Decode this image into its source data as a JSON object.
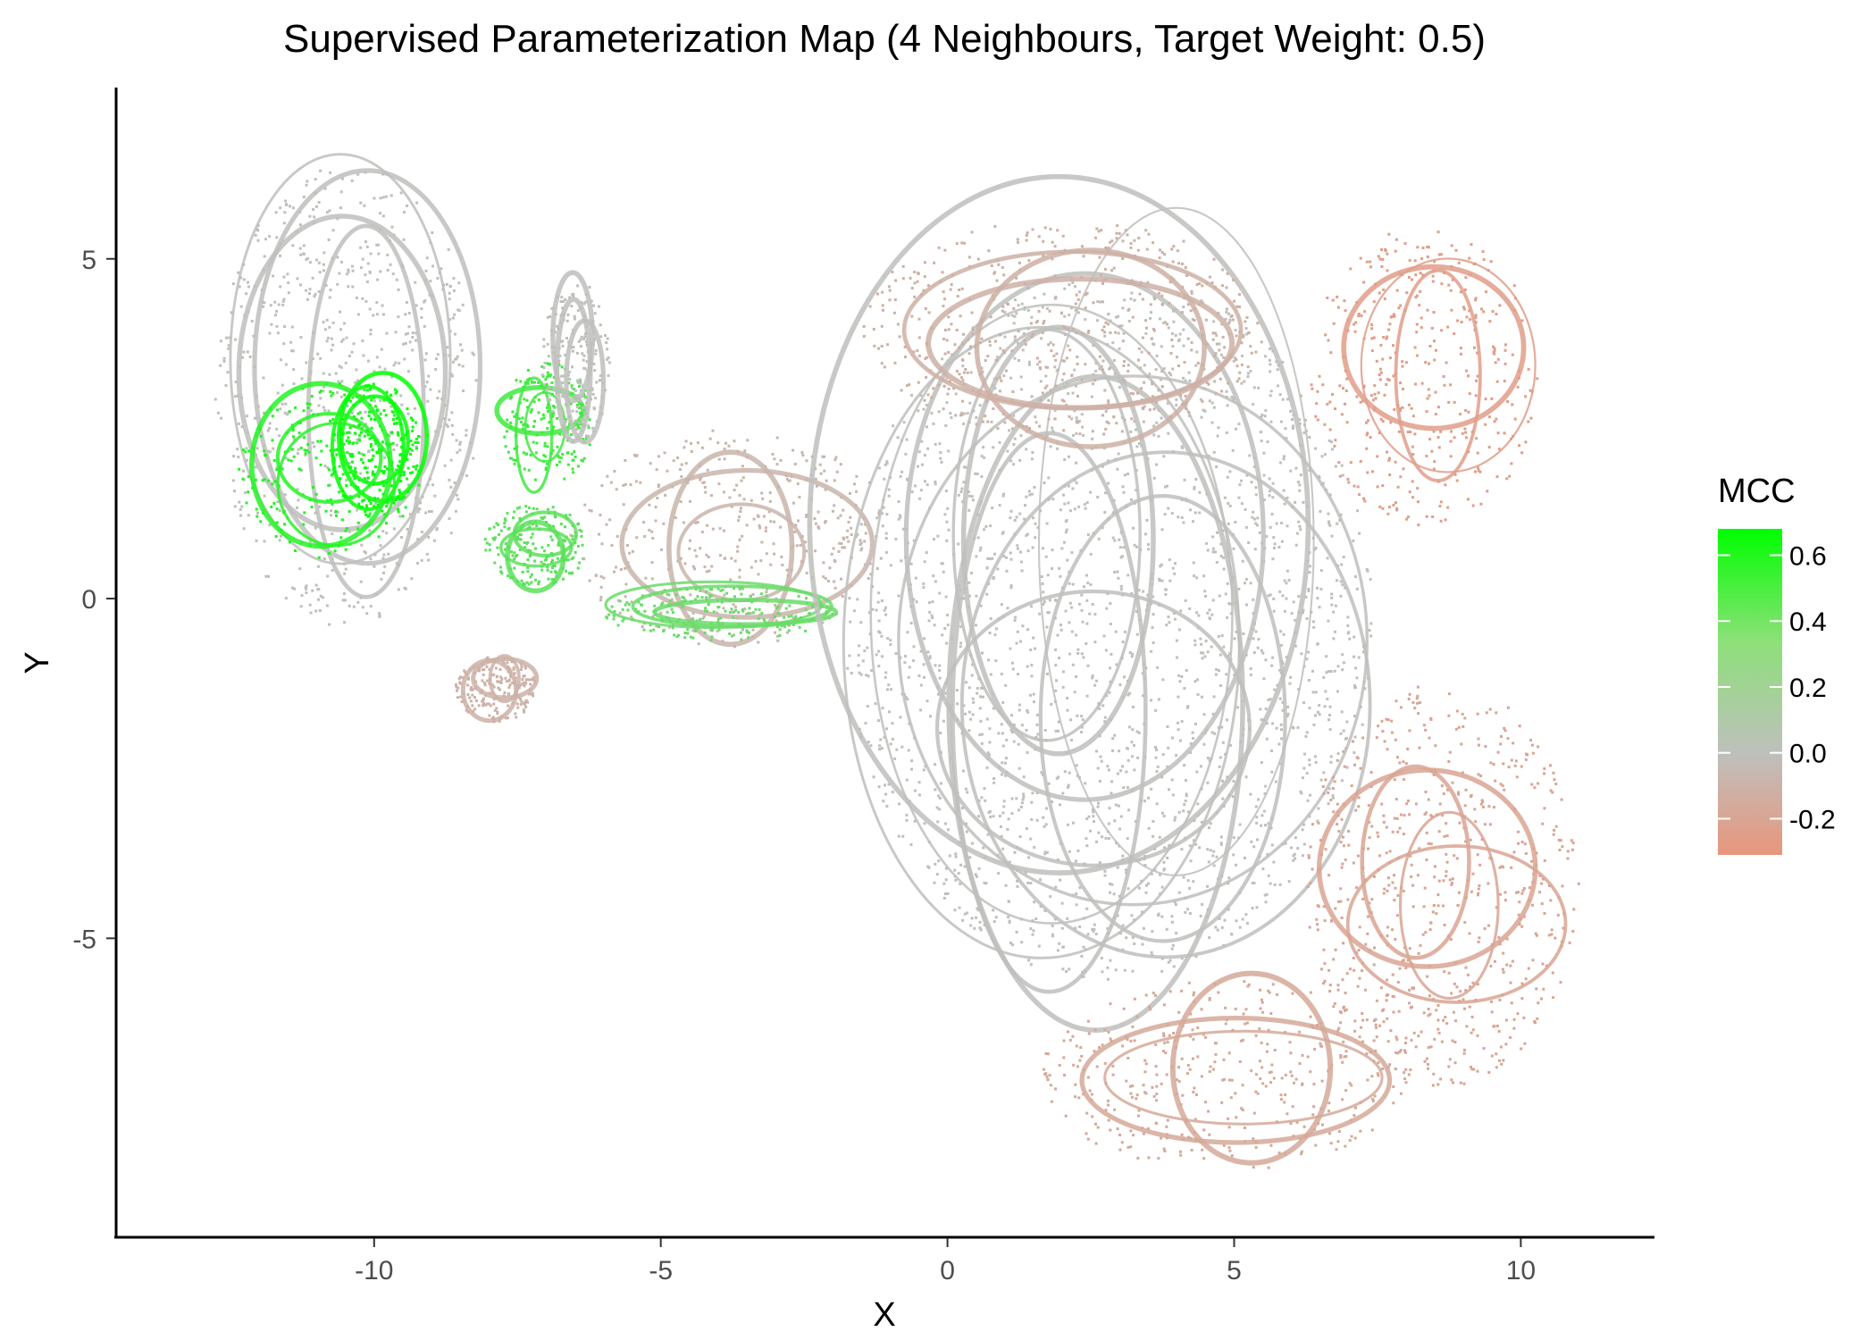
{
  "chart_data": {
    "type": "scatter",
    "title": "Supervised Parameterization Map (4 Neighbours, Target Weight: 0.5)",
    "xlabel": "X",
    "ylabel": "Y",
    "xlim": [
      -14.5,
      12.3
    ],
    "ylim": [
      -9.4,
      7.6
    ],
    "x_ticks": [
      {
        "value": -10,
        "label": "-10"
      },
      {
        "value": -5,
        "label": "-5"
      },
      {
        "value": 0,
        "label": "0"
      },
      {
        "value": 5,
        "label": "5"
      },
      {
        "value": 10,
        "label": "10"
      }
    ],
    "y_ticks": [
      {
        "value": 5,
        "label": "5"
      },
      {
        "value": 0,
        "label": "0"
      },
      {
        "value": -5,
        "label": "-5"
      }
    ],
    "grid": false,
    "legend": {
      "title": "MCC",
      "position": "right",
      "range": [
        -0.31,
        0.68
      ],
      "ticks": [
        {
          "value": 0.6,
          "label": "0.6"
        },
        {
          "value": 0.4,
          "label": "0.4"
        },
        {
          "value": 0.2,
          "label": "0.2"
        },
        {
          "value": 0.0,
          "label": "0.0"
        },
        {
          "value": -0.2,
          "label": "-0.2"
        }
      ],
      "color_stops": [
        {
          "value": -0.31,
          "color": "#e8967d"
        },
        {
          "value": 0.0,
          "color": "#bec0bc"
        },
        {
          "value": 0.68,
          "color": "#00ff00"
        }
      ]
    },
    "regions": [
      {
        "name": "left oval",
        "cx": -10.5,
        "cy": 3.0,
        "rx": 2.3,
        "ry": 3.4,
        "mcc": 0.0
      },
      {
        "name": "left oval green loops",
        "cx": -10.0,
        "cy": 2.2,
        "rx": 0.8,
        "ry": 1.0,
        "mcc": 0.68
      },
      {
        "name": "left oval light green arcs",
        "cx": -10.8,
        "cy": 1.9,
        "rx": 1.6,
        "ry": 1.3,
        "mcc": 0.55
      },
      {
        "name": "small bottom-left blob",
        "cx": -7.9,
        "cy": -1.3,
        "rx": 0.7,
        "ry": 0.5,
        "mcc": -0.1
      },
      {
        "name": "bridge loops",
        "cx": -7.0,
        "cy": 2.6,
        "rx": 0.8,
        "ry": 0.9,
        "mcc": 0.45
      },
      {
        "name": "bridge lower loops",
        "cx": -7.2,
        "cy": 0.8,
        "rx": 0.9,
        "ry": 0.6,
        "mcc": 0.35
      },
      {
        "name": "gray spike",
        "cx": -6.5,
        "cy": 3.5,
        "rx": 0.6,
        "ry": 1.2,
        "mcc": 0.0
      },
      {
        "name": "middle swirls",
        "cx": -3.8,
        "cy": 0.9,
        "rx": 2.8,
        "ry": 1.6,
        "mcc": -0.08
      },
      {
        "name": "middle green streak",
        "cx": -4.0,
        "cy": -0.2,
        "rx": 2.0,
        "ry": 0.4,
        "mcc": 0.3
      },
      {
        "name": "central gray mass",
        "cx": 2.8,
        "cy": -0.4,
        "rx": 4.6,
        "ry": 5.2,
        "mcc": 0.0
      },
      {
        "name": "top-right salmon loops",
        "cx": 8.3,
        "cy": 3.3,
        "rx": 2.0,
        "ry": 2.2,
        "mcc": -0.25
      },
      {
        "name": "right salmon tail",
        "cx": 8.6,
        "cy": -4.2,
        "rx": 2.4,
        "ry": 3.0,
        "mcc": -0.2
      },
      {
        "name": "bottom salmon loops",
        "cx": 4.8,
        "cy": -7.0,
        "rx": 3.2,
        "ry": 1.4,
        "mcc": -0.17
      },
      {
        "name": "upper-middle scatter",
        "cx": 2.0,
        "cy": 4.0,
        "rx": 3.5,
        "ry": 1.6,
        "mcc": -0.12
      }
    ]
  }
}
